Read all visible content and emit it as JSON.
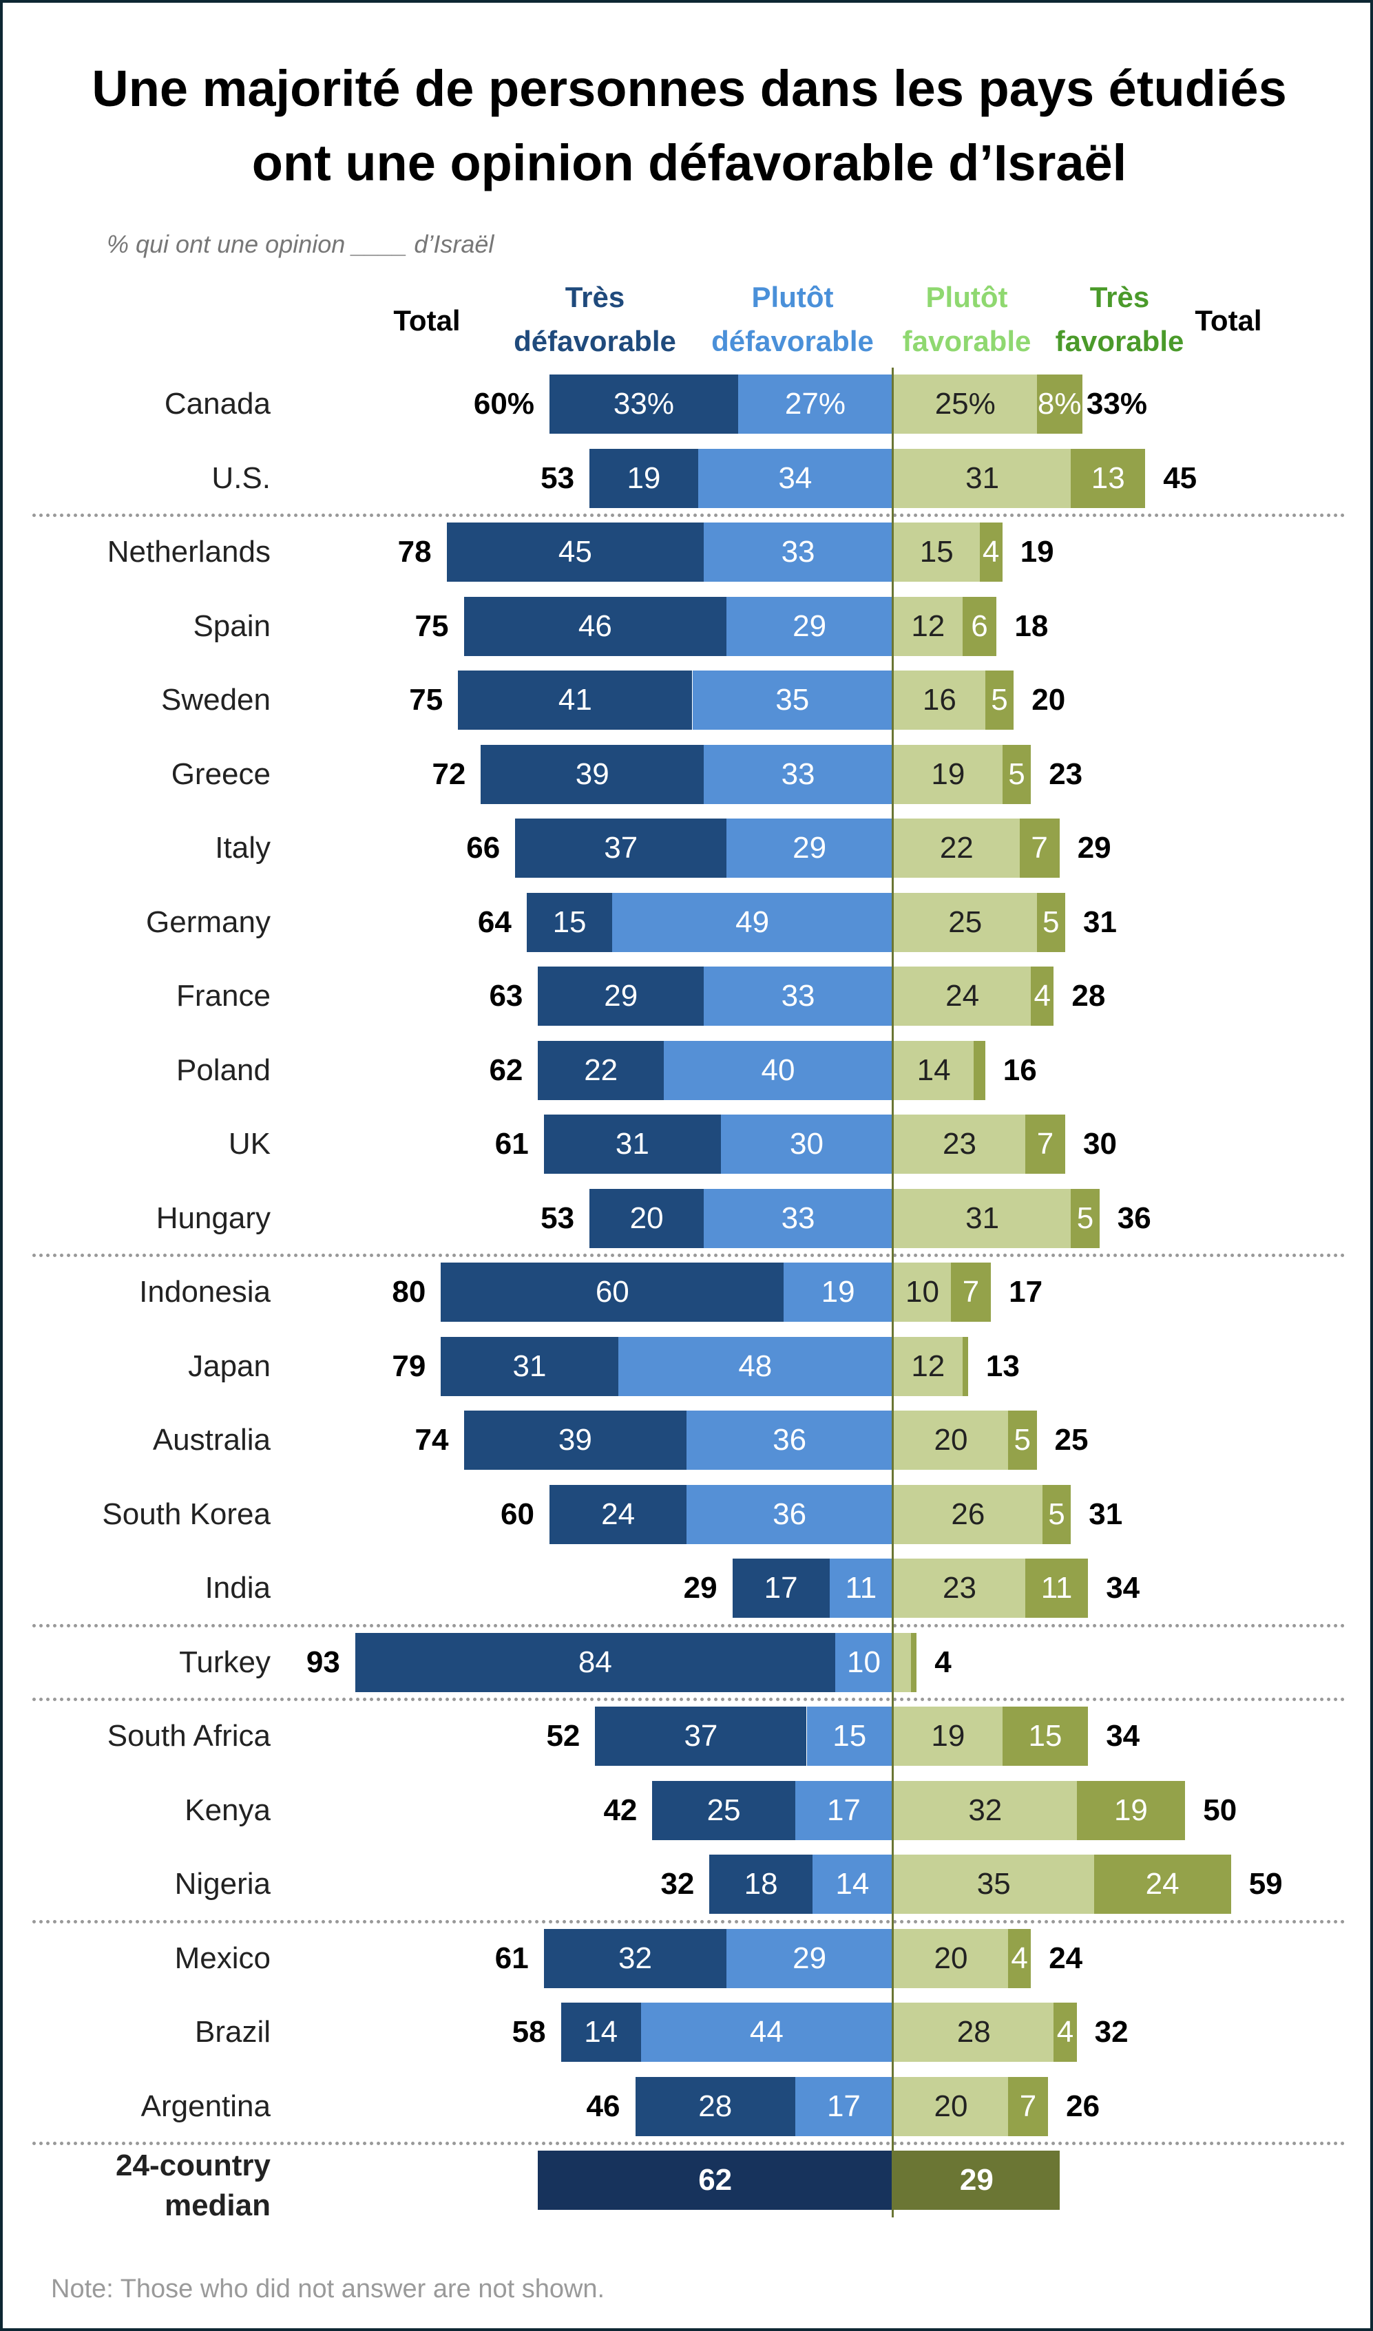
{
  "title": [
    "Une majorité de personnes dans les pays étudiés",
    "ont une opinion défavorable d’Israël"
  ],
  "subtitle": "% qui ont une opinion ____ d’Israël",
  "headers": {
    "total_left": "Total",
    "very_unfav": [
      "Très",
      "défavorable"
    ],
    "some_unfav": [
      "Plutôt",
      "défavorable"
    ],
    "some_fav": [
      "Plutôt",
      "favorable"
    ],
    "very_fav": [
      "Très",
      "favorable"
    ],
    "total_right": "Total"
  },
  "colors": {
    "very_unfav": "#1f4a7c",
    "some_unfav": "#5590d6",
    "some_fav": "#c6d196",
    "very_fav": "#94a24a",
    "median_unfav": "#17335c",
    "median_fav": "#6b7634",
    "hdr_very_unfav": "#1f4a7c",
    "hdr_some_unfav": "#4a90d9",
    "hdr_some_fav": "#8fd870",
    "hdr_very_fav": "#4a9a2a"
  },
  "note": "Note: Those who did not answer are not shown.",
  "chart_data": {
    "type": "bar",
    "orientation": "horizontal-diverging",
    "series": [
      "Très défavorable",
      "Plutôt défavorable",
      "Plutôt favorable",
      "Très favorable"
    ],
    "separators_after": [
      1,
      11,
      16,
      17,
      20,
      23
    ],
    "rows": [
      {
        "country": "Canada",
        "unfav_total": "60%",
        "vu": 33,
        "su": 27,
        "sf": 25,
        "vf": 8,
        "fav_total": "33%",
        "vu_l": "33%",
        "su_l": "27%",
        "sf_l": "25%",
        "vf_l": "8%"
      },
      {
        "country": "U.S.",
        "unfav_total": "53",
        "vu": 19,
        "su": 34,
        "sf": 31,
        "vf": 13,
        "fav_total": "45",
        "vu_l": "19",
        "su_l": "34",
        "sf_l": "31",
        "vf_l": "13"
      },
      {
        "country": "Netherlands",
        "unfav_total": "78",
        "vu": 45,
        "su": 33,
        "sf": 15,
        "vf": 4,
        "fav_total": "19",
        "vu_l": "45",
        "su_l": "33",
        "sf_l": "15",
        "vf_l": "4"
      },
      {
        "country": "Spain",
        "unfav_total": "75",
        "vu": 46,
        "su": 29,
        "sf": 12,
        "vf": 6,
        "fav_total": "18",
        "vu_l": "46",
        "su_l": "29",
        "sf_l": "12",
        "vf_l": "6"
      },
      {
        "country": "Sweden",
        "unfav_total": "75",
        "vu": 41,
        "su": 35,
        "sf": 16,
        "vf": 5,
        "fav_total": "20",
        "vu_l": "41",
        "su_l": "35",
        "sf_l": "16",
        "vf_l": "5"
      },
      {
        "country": "Greece",
        "unfav_total": "72",
        "vu": 39,
        "su": 33,
        "sf": 19,
        "vf": 5,
        "fav_total": "23",
        "vu_l": "39",
        "su_l": "33",
        "sf_l": "19",
        "vf_l": "5"
      },
      {
        "country": "Italy",
        "unfav_total": "66",
        "vu": 37,
        "su": 29,
        "sf": 22,
        "vf": 7,
        "fav_total": "29",
        "vu_l": "37",
        "su_l": "29",
        "sf_l": "22",
        "vf_l": "7"
      },
      {
        "country": "Germany",
        "unfav_total": "64",
        "vu": 15,
        "su": 49,
        "sf": 25,
        "vf": 5,
        "fav_total": "31",
        "vu_l": "15",
        "su_l": "49",
        "sf_l": "25",
        "vf_l": "5"
      },
      {
        "country": "France",
        "unfav_total": "63",
        "vu": 29,
        "su": 33,
        "sf": 24,
        "vf": 4,
        "fav_total": "28",
        "vu_l": "29",
        "su_l": "33",
        "sf_l": "24",
        "vf_l": "4"
      },
      {
        "country": "Poland",
        "unfav_total": "62",
        "vu": 22,
        "su": 40,
        "sf": 14,
        "vf": 2,
        "fav_total": "16",
        "vu_l": "22",
        "su_l": "40",
        "sf_l": "14",
        "vf_l": ""
      },
      {
        "country": "UK",
        "unfav_total": "61",
        "vu": 31,
        "su": 30,
        "sf": 23,
        "vf": 7,
        "fav_total": "30",
        "vu_l": "31",
        "su_l": "30",
        "sf_l": "23",
        "vf_l": "7"
      },
      {
        "country": "Hungary",
        "unfav_total": "53",
        "vu": 20,
        "su": 33,
        "sf": 31,
        "vf": 5,
        "fav_total": "36",
        "vu_l": "20",
        "su_l": "33",
        "sf_l": "31",
        "vf_l": "5"
      },
      {
        "country": "Indonesia",
        "unfav_total": "80",
        "vu": 60,
        "su": 19,
        "sf": 10,
        "vf": 7,
        "fav_total": "17",
        "vu_l": "60",
        "su_l": "19",
        "sf_l": "10",
        "vf_l": "7"
      },
      {
        "country": "Japan",
        "unfav_total": "79",
        "vu": 31,
        "su": 48,
        "sf": 12,
        "vf": 1,
        "fav_total": "13",
        "vu_l": "31",
        "su_l": "48",
        "sf_l": "12",
        "vf_l": ""
      },
      {
        "country": "Australia",
        "unfav_total": "74",
        "vu": 39,
        "su": 36,
        "sf": 20,
        "vf": 5,
        "fav_total": "25",
        "vu_l": "39",
        "su_l": "36",
        "sf_l": "20",
        "vf_l": "5"
      },
      {
        "country": "South Korea",
        "unfav_total": "60",
        "vu": 24,
        "su": 36,
        "sf": 26,
        "vf": 5,
        "fav_total": "31",
        "vu_l": "24",
        "su_l": "36",
        "sf_l": "26",
        "vf_l": "5"
      },
      {
        "country": "India",
        "unfav_total": "29",
        "vu": 17,
        "su": 11,
        "sf": 23,
        "vf": 11,
        "fav_total": "34",
        "vu_l": "17",
        "su_l": "11",
        "sf_l": "23",
        "vf_l": "11"
      },
      {
        "country": "Turkey",
        "unfav_total": "93",
        "vu": 84,
        "su": 10,
        "sf": 3,
        "vf": 1,
        "fav_total": "4",
        "vu_l": "84",
        "su_l": "10",
        "sf_l": "",
        "vf_l": ""
      },
      {
        "country": "South Africa",
        "unfav_total": "52",
        "vu": 37,
        "su": 15,
        "sf": 19,
        "vf": 15,
        "fav_total": "34",
        "vu_l": "37",
        "su_l": "15",
        "sf_l": "19",
        "vf_l": "15"
      },
      {
        "country": "Kenya",
        "unfav_total": "42",
        "vu": 25,
        "su": 17,
        "sf": 32,
        "vf": 19,
        "fav_total": "50",
        "vu_l": "25",
        "su_l": "17",
        "sf_l": "32",
        "vf_l": "19"
      },
      {
        "country": "Nigeria",
        "unfav_total": "32",
        "vu": 18,
        "su": 14,
        "sf": 35,
        "vf": 24,
        "fav_total": "59",
        "vu_l": "18",
        "su_l": "14",
        "sf_l": "35",
        "vf_l": "24"
      },
      {
        "country": "Mexico",
        "unfav_total": "61",
        "vu": 32,
        "su": 29,
        "sf": 20,
        "vf": 4,
        "fav_total": "24",
        "vu_l": "32",
        "su_l": "29",
        "sf_l": "20",
        "vf_l": "4"
      },
      {
        "country": "Brazil",
        "unfav_total": "58",
        "vu": 14,
        "su": 44,
        "sf": 28,
        "vf": 4,
        "fav_total": "32",
        "vu_l": "14",
        "su_l": "44",
        "sf_l": "28",
        "vf_l": "4"
      },
      {
        "country": "Argentina",
        "unfav_total": "46",
        "vu": 28,
        "su": 17,
        "sf": 20,
        "vf": 7,
        "fav_total": "26",
        "vu_l": "28",
        "su_l": "17",
        "sf_l": "20",
        "vf_l": "7"
      }
    ],
    "median": {
      "label": [
        "24-country",
        "median"
      ],
      "unfav": 62,
      "fav": 29,
      "unfav_l": "62",
      "fav_l": "29"
    }
  }
}
